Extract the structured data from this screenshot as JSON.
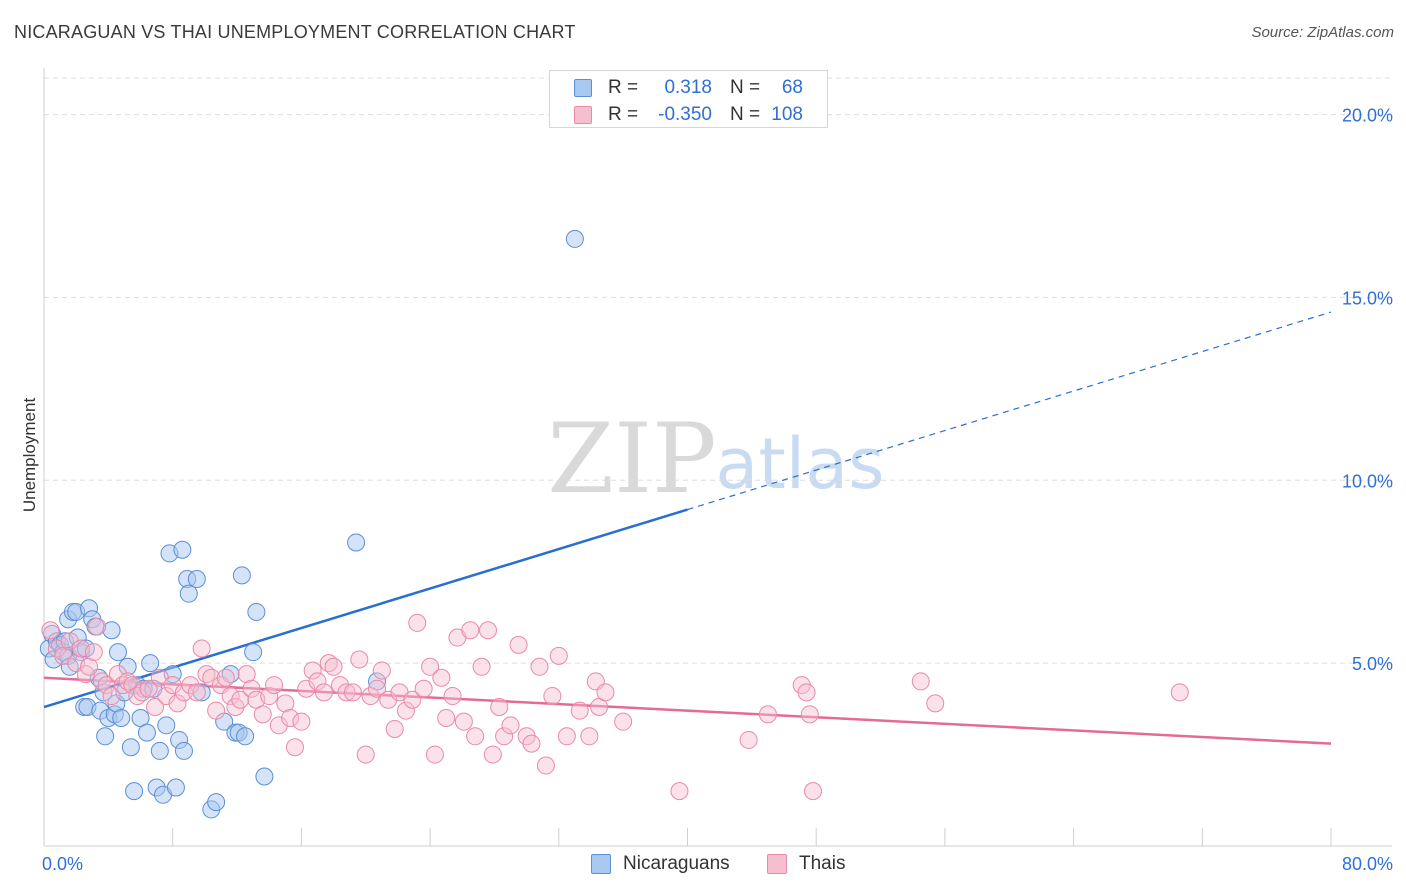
{
  "title": "NICARAGUAN VS THAI UNEMPLOYMENT CORRELATION CHART",
  "source": "Source: ZipAtlas.com",
  "watermark": {
    "zip": "ZIP",
    "atlas": "atlas"
  },
  "colors": {
    "blue_fill": "#a9c8f0",
    "blue_stroke": "#5b8fd6",
    "blue_line": "#2a6fd0",
    "pink_fill": "#f6bfd0",
    "pink_stroke": "#e88aa8",
    "pink_line": "#e36b96",
    "accent_text": "#2f6fd6"
  },
  "legend": {
    "rows": [
      {
        "r_label": "R =",
        "r_value": "0.318",
        "n_label": "N =",
        "n_value": "68"
      },
      {
        "r_label": "R =",
        "r_value": "-0.350",
        "n_label": "N =",
        "n_value": "108"
      }
    ],
    "bottom": [
      {
        "label": "Nicaraguans"
      },
      {
        "label": "Thais"
      }
    ]
  },
  "chart_data": {
    "type": "scatter",
    "title": "NICARAGUAN VS THAI UNEMPLOYMENT CORRELATION CHART",
    "xlabel": "",
    "ylabel": "Unemployment",
    "xlim": [
      0,
      80
    ],
    "ylim": [
      0,
      21
    ],
    "x_tick_labels": [
      "0.0%",
      "80.0%"
    ],
    "y_ticks": [
      5,
      10,
      15,
      20
    ],
    "y_tick_labels": [
      "5.0%",
      "10.0%",
      "15.0%",
      "20.0%"
    ],
    "grid": true,
    "series": [
      {
        "name": "Nicaraguans",
        "r": 0.318,
        "n": 68,
        "trend": {
          "x0": 0,
          "y0": 3.8,
          "x1": 80,
          "y1": 14.6,
          "solid_until_x": 40
        },
        "points": [
          [
            0.3,
            5.4
          ],
          [
            0.5,
            5.8
          ],
          [
            0.6,
            5.1
          ],
          [
            0.8,
            5.6
          ],
          [
            1.0,
            5.5
          ],
          [
            1.2,
            5.3
          ],
          [
            1.3,
            5.6
          ],
          [
            1.5,
            6.2
          ],
          [
            1.5,
            5.2
          ],
          [
            1.6,
            4.9
          ],
          [
            1.8,
            6.4
          ],
          [
            2.0,
            6.4
          ],
          [
            2.1,
            5.7
          ],
          [
            2.3,
            5.3
          ],
          [
            2.5,
            3.8
          ],
          [
            2.6,
            5.4
          ],
          [
            2.7,
            3.8
          ],
          [
            2.8,
            6.5
          ],
          [
            3.0,
            6.2
          ],
          [
            3.2,
            6.0
          ],
          [
            3.4,
            4.6
          ],
          [
            3.5,
            3.7
          ],
          [
            3.7,
            4.2
          ],
          [
            3.8,
            3.0
          ],
          [
            4.0,
            3.5
          ],
          [
            4.2,
            5.9
          ],
          [
            4.4,
            3.6
          ],
          [
            4.5,
            3.9
          ],
          [
            4.6,
            5.3
          ],
          [
            4.8,
            3.5
          ],
          [
            5.0,
            4.2
          ],
          [
            5.2,
            4.9
          ],
          [
            5.4,
            2.7
          ],
          [
            5.6,
            1.5
          ],
          [
            5.8,
            4.4
          ],
          [
            6.0,
            3.5
          ],
          [
            6.2,
            4.3
          ],
          [
            6.4,
            3.1
          ],
          [
            6.6,
            5.0
          ],
          [
            6.8,
            4.3
          ],
          [
            7.0,
            1.6
          ],
          [
            7.2,
            2.6
          ],
          [
            7.4,
            1.4
          ],
          [
            7.6,
            3.3
          ],
          [
            7.8,
            8.0
          ],
          [
            8.0,
            4.7
          ],
          [
            8.2,
            1.6
          ],
          [
            8.4,
            2.9
          ],
          [
            8.6,
            8.1
          ],
          [
            8.7,
            2.6
          ],
          [
            8.9,
            7.3
          ],
          [
            9.0,
            6.9
          ],
          [
            9.5,
            7.3
          ],
          [
            9.8,
            4.2
          ],
          [
            10.4,
            1.0
          ],
          [
            10.7,
            1.2
          ],
          [
            11.2,
            3.4
          ],
          [
            11.6,
            4.7
          ],
          [
            11.9,
            3.1
          ],
          [
            12.1,
            3.1
          ],
          [
            12.5,
            3.0
          ],
          [
            12.3,
            7.4
          ],
          [
            13.0,
            5.3
          ],
          [
            13.2,
            6.4
          ],
          [
            13.7,
            1.9
          ],
          [
            19.4,
            8.3
          ],
          [
            20.7,
            4.5
          ],
          [
            33.0,
            16.6
          ]
        ]
      },
      {
        "name": "Thais",
        "r": -0.35,
        "n": 108,
        "trend": {
          "x0": 0,
          "y0": 4.6,
          "x1": 80,
          "y1": 2.8
        },
        "points": [
          [
            0.4,
            5.9
          ],
          [
            0.8,
            5.4
          ],
          [
            1.2,
            5.2
          ],
          [
            1.6,
            5.6
          ],
          [
            2.0,
            5.0
          ],
          [
            2.3,
            5.4
          ],
          [
            2.6,
            4.7
          ],
          [
            2.8,
            4.9
          ],
          [
            3.1,
            5.3
          ],
          [
            3.3,
            6.0
          ],
          [
            3.6,
            4.5
          ],
          [
            3.9,
            4.4
          ],
          [
            4.2,
            4.1
          ],
          [
            4.6,
            4.7
          ],
          [
            4.9,
            4.4
          ],
          [
            5.2,
            4.5
          ],
          [
            5.5,
            4.4
          ],
          [
            5.8,
            4.1
          ],
          [
            6.1,
            4.2
          ],
          [
            6.5,
            4.3
          ],
          [
            6.9,
            3.8
          ],
          [
            7.2,
            4.6
          ],
          [
            7.6,
            4.1
          ],
          [
            8.0,
            4.4
          ],
          [
            8.3,
            3.9
          ],
          [
            8.7,
            4.2
          ],
          [
            9.1,
            4.4
          ],
          [
            9.5,
            4.2
          ],
          [
            9.8,
            5.4
          ],
          [
            10.1,
            4.7
          ],
          [
            10.4,
            4.6
          ],
          [
            10.7,
            3.7
          ],
          [
            11.0,
            4.4
          ],
          [
            11.3,
            4.6
          ],
          [
            11.6,
            4.1
          ],
          [
            11.9,
            3.8
          ],
          [
            12.2,
            4.0
          ],
          [
            12.6,
            4.7
          ],
          [
            12.9,
            4.3
          ],
          [
            13.2,
            4.0
          ],
          [
            13.6,
            3.6
          ],
          [
            14.0,
            4.1
          ],
          [
            14.3,
            4.4
          ],
          [
            14.6,
            3.3
          ],
          [
            15.0,
            3.9
          ],
          [
            15.3,
            3.5
          ],
          [
            15.6,
            2.7
          ],
          [
            16.0,
            3.4
          ],
          [
            16.3,
            4.3
          ],
          [
            16.7,
            4.8
          ],
          [
            17.0,
            4.5
          ],
          [
            17.4,
            4.2
          ],
          [
            17.7,
            5.0
          ],
          [
            18.0,
            4.9
          ],
          [
            18.4,
            4.4
          ],
          [
            18.8,
            4.2
          ],
          [
            19.2,
            4.2
          ],
          [
            19.6,
            5.1
          ],
          [
            20.0,
            2.5
          ],
          [
            20.3,
            4.1
          ],
          [
            20.7,
            4.3
          ],
          [
            21.0,
            4.8
          ],
          [
            21.4,
            4.0
          ],
          [
            21.8,
            3.2
          ],
          [
            22.1,
            4.2
          ],
          [
            22.5,
            3.7
          ],
          [
            22.9,
            4.0
          ],
          [
            23.2,
            6.1
          ],
          [
            23.6,
            4.3
          ],
          [
            24.0,
            4.9
          ],
          [
            24.3,
            2.5
          ],
          [
            24.7,
            4.6
          ],
          [
            25.0,
            3.5
          ],
          [
            25.4,
            4.1
          ],
          [
            25.7,
            5.7
          ],
          [
            26.1,
            3.4
          ],
          [
            26.5,
            5.9
          ],
          [
            26.8,
            3.0
          ],
          [
            27.2,
            4.9
          ],
          [
            27.6,
            5.9
          ],
          [
            27.9,
            2.5
          ],
          [
            28.3,
            3.8
          ],
          [
            28.6,
            3.0
          ],
          [
            29.0,
            3.3
          ],
          [
            29.5,
            5.5
          ],
          [
            30.0,
            3.0
          ],
          [
            30.3,
            2.8
          ],
          [
            30.8,
            4.9
          ],
          [
            31.2,
            2.2
          ],
          [
            31.6,
            4.1
          ],
          [
            32.0,
            5.2
          ],
          [
            32.5,
            3.0
          ],
          [
            33.3,
            3.7
          ],
          [
            33.9,
            3.0
          ],
          [
            34.3,
            4.5
          ],
          [
            34.5,
            3.8
          ],
          [
            34.9,
            4.2
          ],
          [
            36.0,
            3.4
          ],
          [
            39.5,
            1.5
          ],
          [
            43.8,
            2.9
          ],
          [
            45.0,
            3.6
          ],
          [
            47.1,
            4.4
          ],
          [
            47.4,
            4.2
          ],
          [
            47.6,
            3.6
          ],
          [
            47.8,
            1.5
          ],
          [
            54.5,
            4.5
          ],
          [
            55.4,
            3.9
          ],
          [
            70.6,
            4.2
          ]
        ]
      }
    ]
  }
}
